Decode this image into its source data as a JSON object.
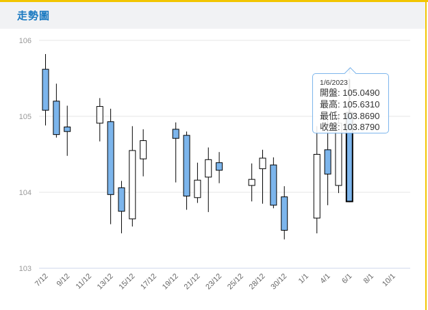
{
  "page": {
    "title": "走勢圖"
  },
  "colors": {
    "accent_title": "#1878c0",
    "frame_gold": "#f2c500",
    "header_bg": "#f1f2f4",
    "candle_down_fill": "#7cb5ec",
    "candle_up_fill": "#ffffff",
    "candle_stroke": "#000000",
    "gridline": "#e6e6e6",
    "x_axis_line": "#ccd6eb",
    "y_label_color": "#999999",
    "x_label_color": "#666666",
    "tooltip_border": "#7cb5ec",
    "tooltip_text": "#333333"
  },
  "chart_data": {
    "type": "candlestick",
    "title": "走勢圖",
    "xlabel": "",
    "ylabel": "",
    "ylim": [
      103,
      106
    ],
    "y_ticks": [
      106,
      105,
      104,
      103
    ],
    "grid": true,
    "legend": "none",
    "x_ticks": [
      {
        "slot": 0,
        "label": "7/12"
      },
      {
        "slot": 2,
        "label": "9/12"
      },
      {
        "slot": 4,
        "label": "11/12"
      },
      {
        "slot": 6,
        "label": "13/12"
      },
      {
        "slot": 8,
        "label": "15/12"
      },
      {
        "slot": 10,
        "label": "17/12"
      },
      {
        "slot": 12,
        "label": "19/12"
      },
      {
        "slot": 14,
        "label": "21/12"
      },
      {
        "slot": 16,
        "label": "23/12"
      },
      {
        "slot": 18,
        "label": "25/12"
      },
      {
        "slot": 20,
        "label": "28/12"
      },
      {
        "slot": 22,
        "label": "30/12"
      },
      {
        "slot": 24,
        "label": "1/1"
      },
      {
        "slot": 26,
        "label": "4/1"
      },
      {
        "slot": 28,
        "label": "6/1"
      },
      {
        "slot": 30,
        "label": "8/1"
      },
      {
        "slot": 32,
        "label": "10/1"
      }
    ],
    "candles": [
      {
        "date": "7/12",
        "slot": 0,
        "open": 105.62,
        "high": 105.82,
        "low": 104.88,
        "close": 105.08
      },
      {
        "date": "8/12",
        "slot": 1,
        "open": 105.2,
        "high": 105.43,
        "low": 104.72,
        "close": 104.76
      },
      {
        "date": "9/12",
        "slot": 2,
        "open": 104.86,
        "high": 105.14,
        "low": 104.48,
        "close": 104.8
      },
      {
        "date": "12/12",
        "slot": 5,
        "open": 104.91,
        "high": 105.24,
        "low": 104.67,
        "close": 105.13
      },
      {
        "date": "13/12",
        "slot": 6,
        "open": 104.93,
        "high": 105.1,
        "low": 103.58,
        "close": 103.97
      },
      {
        "date": "14/12",
        "slot": 7,
        "open": 104.06,
        "high": 104.15,
        "low": 103.46,
        "close": 103.75
      },
      {
        "date": "15/12",
        "slot": 8,
        "open": 103.65,
        "high": 104.87,
        "low": 103.55,
        "close": 104.55
      },
      {
        "date": "16/12",
        "slot": 9,
        "open": 104.44,
        "high": 104.83,
        "low": 104.21,
        "close": 104.68
      },
      {
        "date": "19/12",
        "slot": 12,
        "open": 104.83,
        "high": 104.92,
        "low": 104.13,
        "close": 104.71
      },
      {
        "date": "20/12",
        "slot": 13,
        "open": 104.75,
        "high": 104.8,
        "low": 103.77,
        "close": 103.95
      },
      {
        "date": "21/12",
        "slot": 14,
        "open": 103.93,
        "high": 104.39,
        "low": 103.86,
        "close": 104.16
      },
      {
        "date": "22/12",
        "slot": 15,
        "open": 104.2,
        "high": 104.59,
        "low": 103.74,
        "close": 104.43
      },
      {
        "date": "23/12",
        "slot": 16,
        "open": 104.39,
        "high": 104.53,
        "low": 104.12,
        "close": 104.29
      },
      {
        "date": "27/12",
        "slot": 19,
        "open": 104.09,
        "high": 104.38,
        "low": 103.88,
        "close": 104.17
      },
      {
        "date": "28/12",
        "slot": 20,
        "open": 104.31,
        "high": 104.56,
        "low": 103.85,
        "close": 104.45
      },
      {
        "date": "29/12",
        "slot": 21,
        "open": 104.36,
        "high": 104.46,
        "low": 103.79,
        "close": 103.83
      },
      {
        "date": "30/12",
        "slot": 22,
        "open": 103.94,
        "high": 104.08,
        "low": 103.38,
        "close": 103.5
      },
      {
        "date": "3/1",
        "slot": 25,
        "open": 103.66,
        "high": 104.87,
        "low": 103.46,
        "close": 104.5
      },
      {
        "date": "4/1",
        "slot": 26,
        "open": 104.56,
        "high": 104.95,
        "low": 103.83,
        "close": 104.24
      },
      {
        "date": "5/1",
        "slot": 27,
        "open": 104.09,
        "high": 105.03,
        "low": 103.99,
        "close": 104.91
      },
      {
        "date": "6/1",
        "slot": 28,
        "open": 105.049,
        "high": 105.631,
        "low": 103.869,
        "close": 103.879,
        "selected": true
      }
    ],
    "selected_index": 20
  },
  "tooltip": {
    "date": "1/6/2023",
    "rows": [
      {
        "label": "開盤",
        "value": "105.0490"
      },
      {
        "label": "最高",
        "value": "105.6310"
      },
      {
        "label": "最低",
        "value": "103.8690"
      },
      {
        "label": "收盤",
        "value": "103.8790"
      }
    ]
  }
}
